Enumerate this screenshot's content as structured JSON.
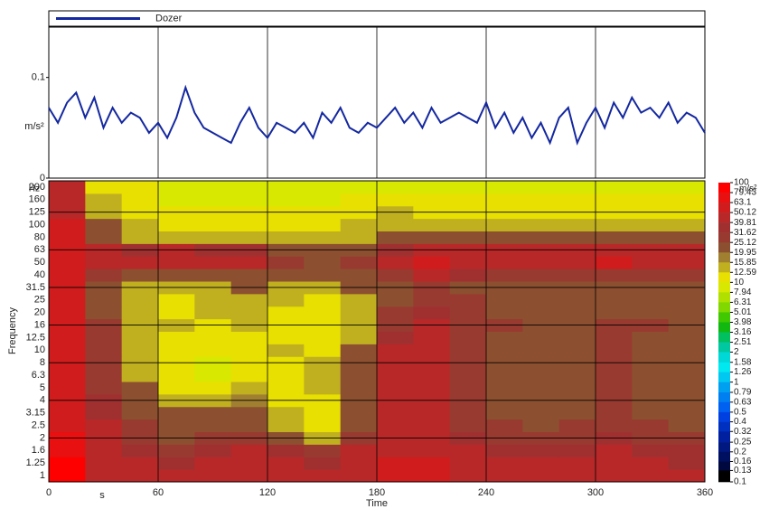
{
  "chart_data": [
    {
      "type": "line",
      "x": [
        0,
        5,
        10,
        15,
        20,
        25,
        30,
        35,
        40,
        45,
        50,
        55,
        60,
        65,
        70,
        75,
        80,
        85,
        90,
        95,
        100,
        105,
        110,
        115,
        120,
        125,
        130,
        135,
        140,
        145,
        150,
        155,
        160,
        165,
        170,
        175,
        180,
        185,
        190,
        195,
        200,
        205,
        210,
        215,
        220,
        225,
        230,
        235,
        240,
        245,
        250,
        255,
        260,
        265,
        270,
        275,
        280,
        285,
        290,
        295,
        300,
        305,
        310,
        315,
        320,
        325,
        330,
        335,
        340,
        345,
        350,
        355,
        360
      ],
      "series": [
        {
          "name": "Dozer",
          "color": "#1428a0",
          "values": [
            0.07,
            0.055,
            0.075,
            0.085,
            0.06,
            0.08,
            0.05,
            0.07,
            0.055,
            0.065,
            0.06,
            0.045,
            0.055,
            0.04,
            0.06,
            0.09,
            0.065,
            0.05,
            0.045,
            0.04,
            0.035,
            0.055,
            0.07,
            0.05,
            0.04,
            0.055,
            0.05,
            0.045,
            0.055,
            0.04,
            0.065,
            0.055,
            0.07,
            0.05,
            0.045,
            0.055,
            0.05,
            0.06,
            0.07,
            0.055,
            0.065,
            0.05,
            0.07,
            0.055,
            0.06,
            0.065,
            0.06,
            0.055,
            0.075,
            0.05,
            0.065,
            0.045,
            0.06,
            0.04,
            0.055,
            0.035,
            0.06,
            0.07,
            0.035,
            0.055,
            0.07,
            0.05,
            0.075,
            0.06,
            0.08,
            0.065,
            0.07,
            0.06,
            0.075,
            0.055,
            0.065,
            0.06,
            0.045
          ]
        }
      ],
      "xlim": [
        0,
        360
      ],
      "xticks": [
        0,
        60,
        120,
        180,
        240,
        300,
        360
      ],
      "ylim": [
        0,
        0.15
      ],
      "yticks": [
        0,
        0.1
      ],
      "y_unit": "m/s²",
      "grid": true
    },
    {
      "type": "heatmap",
      "xlabel": "Time",
      "x_unit": "s",
      "ylabel": "Frequency",
      "y_unit": "Hz",
      "xlim": [
        0,
        360
      ],
      "xticks": [
        0,
        60,
        120,
        180,
        240,
        300,
        360
      ],
      "time_bins": [
        0,
        20,
        40,
        60,
        80,
        100,
        120,
        140,
        160,
        180,
        200,
        220,
        240,
        260,
        280,
        300,
        320,
        340,
        360
      ],
      "frequencies": [
        1,
        1.25,
        1.6,
        2,
        2.5,
        3.15,
        4,
        5,
        6.3,
        8,
        10,
        12.5,
        16,
        20,
        25,
        31.5,
        40,
        50,
        63,
        80,
        100,
        125,
        160,
        200
      ],
      "z": [
        [
          80,
          50,
          40,
          40,
          45,
          50,
          50,
          40,
          45,
          60,
          60,
          50,
          45,
          40,
          45,
          50,
          45,
          40
        ],
        [
          80,
          50,
          40,
          35,
          40,
          45,
          40,
          35,
          40,
          55,
          55,
          45,
          40,
          40,
          40,
          45,
          40,
          35
        ],
        [
          70,
          45,
          35,
          30,
          35,
          40,
          35,
          30,
          40,
          50,
          50,
          40,
          35,
          35,
          35,
          40,
          35,
          35
        ],
        [
          70,
          40,
          30,
          25,
          30,
          30,
          20,
          15,
          30,
          45,
          45,
          35,
          30,
          30,
          30,
          35,
          30,
          30
        ],
        [
          60,
          40,
          30,
          25,
          25,
          25,
          15,
          12,
          25,
          40,
          40,
          30,
          30,
          25,
          30,
          30,
          30,
          25
        ],
        [
          60,
          35,
          25,
          20,
          20,
          20,
          13,
          12,
          25,
          40,
          40,
          30,
          25,
          25,
          25,
          30,
          25,
          25
        ],
        [
          60,
          35,
          25,
          15,
          15,
          18,
          12,
          12,
          25,
          40,
          40,
          30,
          25,
          25,
          25,
          30,
          25,
          25
        ],
        [
          60,
          30,
          20,
          12,
          10,
          15,
          12,
          15,
          25,
          40,
          40,
          30,
          25,
          25,
          20,
          30,
          25,
          25
        ],
        [
          60,
          30,
          15,
          10,
          8,
          12,
          12,
          15,
          25,
          40,
          45,
          30,
          25,
          20,
          20,
          30,
          25,
          25
        ],
        [
          60,
          30,
          15,
          10,
          8,
          10,
          12,
          15,
          25,
          40,
          45,
          30,
          25,
          20,
          20,
          30,
          25,
          20
        ],
        [
          60,
          30,
          15,
          12,
          10,
          12,
          13,
          12,
          20,
          40,
          50,
          30,
          25,
          25,
          20,
          30,
          25,
          20
        ],
        [
          60,
          30,
          15,
          12,
          12,
          12,
          12,
          12,
          15,
          35,
          45,
          30,
          25,
          25,
          25,
          30,
          25,
          25
        ],
        [
          60,
          30,
          15,
          13,
          12,
          13,
          12,
          12,
          15,
          30,
          40,
          30,
          30,
          25,
          25,
          30,
          30,
          25
        ],
        [
          60,
          25,
          15,
          12,
          13,
          15,
          12,
          12,
          15,
          30,
          35,
          30,
          25,
          25,
          25,
          25,
          25,
          25
        ],
        [
          60,
          25,
          13,
          12,
          13,
          15,
          13,
          12,
          15,
          25,
          30,
          30,
          25,
          25,
          25,
          25,
          25,
          25
        ],
        [
          60,
          25,
          15,
          13,
          15,
          20,
          15,
          15,
          20,
          25,
          30,
          25,
          25,
          25,
          25,
          25,
          25,
          25
        ],
        [
          60,
          30,
          20,
          20,
          20,
          25,
          20,
          20,
          25,
          30,
          40,
          35,
          30,
          30,
          30,
          30,
          30,
          30
        ],
        [
          60,
          45,
          45,
          45,
          45,
          45,
          30,
          25,
          30,
          40,
          55,
          50,
          50,
          50,
          50,
          55,
          50,
          50
        ],
        [
          60,
          40,
          35,
          40,
          35,
          35,
          25,
          25,
          25,
          35,
          45,
          40,
          40,
          40,
          40,
          45,
          40,
          40
        ],
        [
          60,
          25,
          15,
          15,
          15,
          15,
          15,
          13,
          15,
          20,
          25,
          20,
          20,
          20,
          20,
          20,
          20,
          20
        ],
        [
          60,
          20,
          13,
          12,
          12,
          12,
          12,
          12,
          13,
          15,
          15,
          15,
          15,
          15,
          15,
          15,
          15,
          15
        ],
        [
          50,
          15,
          12,
          10,
          10,
          10,
          10,
          10,
          12,
          13,
          12,
          12,
          12,
          12,
          12,
          12,
          12,
          12
        ],
        [
          50,
          13,
          10,
          9,
          9,
          9,
          9,
          9,
          10,
          10,
          10,
          10,
          10,
          10,
          10,
          10,
          10,
          10
        ],
        [
          45,
          12,
          10,
          8,
          8,
          8,
          8,
          8,
          9,
          9,
          9,
          9,
          9,
          9,
          9,
          9,
          9,
          9
        ]
      ],
      "colorbar": {
        "unit": "m/s²",
        "ticks": [
          100,
          79.43,
          63.1,
          50.12,
          39.81,
          31.62,
          25.12,
          19.95,
          15.85,
          12.59,
          10,
          7.94,
          6.31,
          5.01,
          3.98,
          3.16,
          2.51,
          2,
          1.58,
          1.26,
          1,
          0.79,
          0.63,
          0.5,
          0.4,
          0.32,
          0.25,
          0.2,
          0.16,
          0.13,
          0.1
        ],
        "colors": [
          "#ff0000",
          "#e81010",
          "#d01c1c",
          "#b82828",
          "#a03030",
          "#983a30",
          "#8c5030",
          "#a08030",
          "#c0b020",
          "#e8e000",
          "#d8e800",
          "#b0e000",
          "#80d800",
          "#40c800",
          "#10b810",
          "#00c060",
          "#00c8a0",
          "#00d8d8",
          "#00e8f0",
          "#00c8f0",
          "#00a0f0",
          "#0080f0",
          "#0060f0",
          "#0040e0",
          "#0030c0",
          "#0020a0",
          "#001880",
          "#001060",
          "#000840",
          "#000000"
        ]
      }
    }
  ]
}
